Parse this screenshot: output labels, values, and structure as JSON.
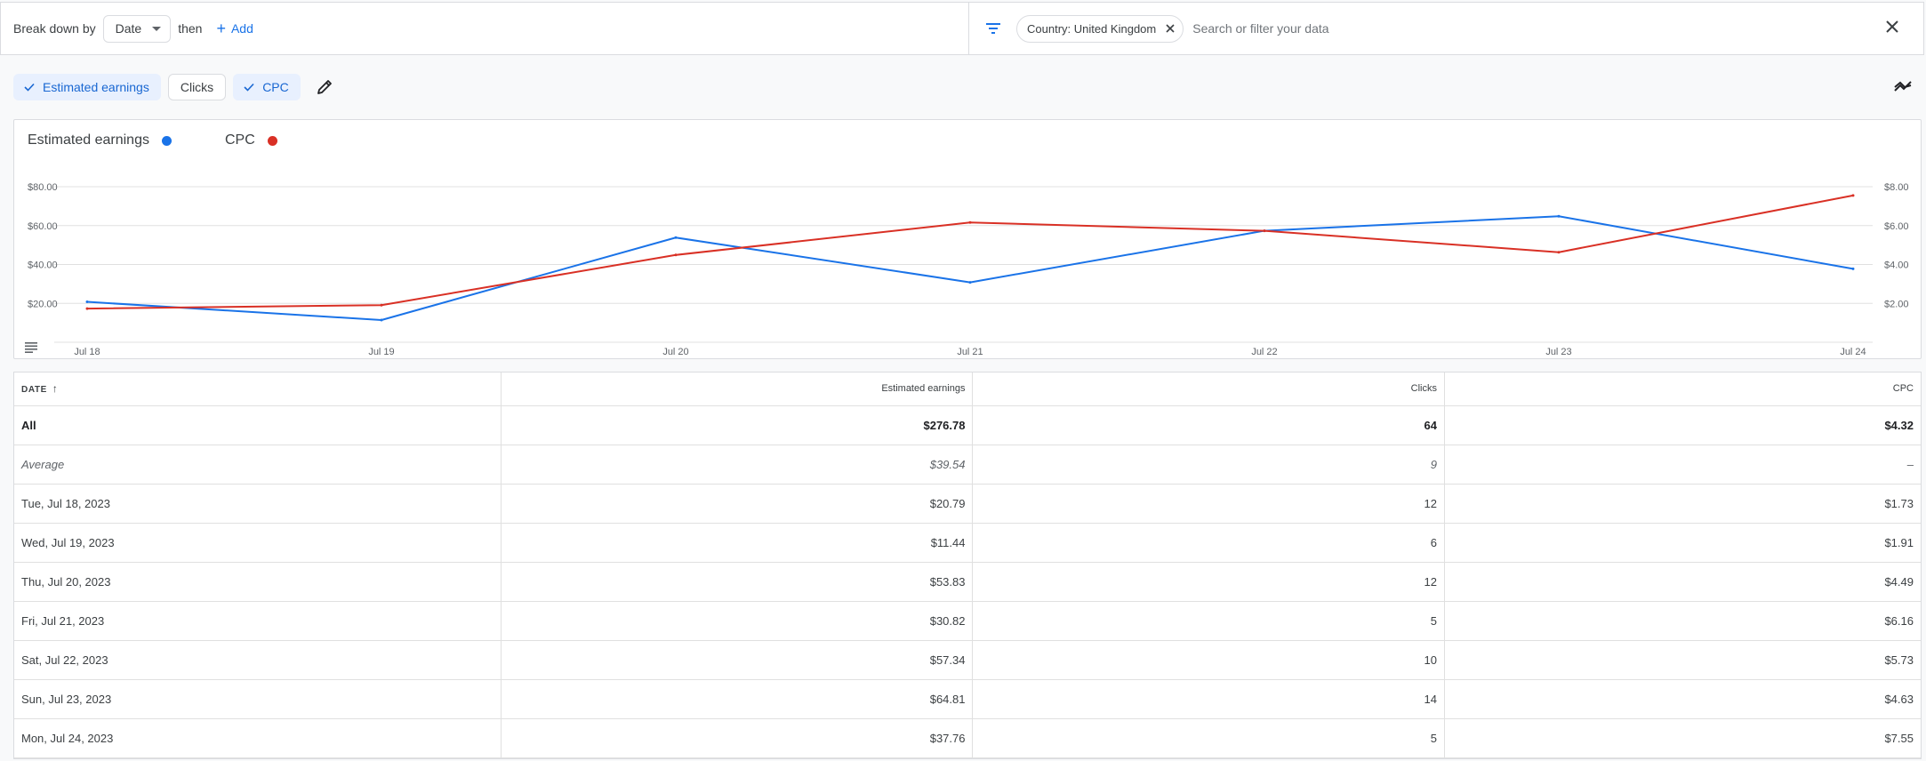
{
  "toolbar": {
    "breakdown_label": "Break down by",
    "breakdown_value": "Date",
    "then_label": "then",
    "add_label": "Add",
    "filter_chip": "Country: United Kingdom",
    "search_placeholder": "Search or filter your data",
    "icons": [
      "filter-icon",
      "close-icon",
      "plus-icon",
      "chevron-down-icon"
    ]
  },
  "metrics": {
    "chips": [
      {
        "label": "Estimated earnings",
        "selected": true
      },
      {
        "label": "Clicks",
        "selected": false
      },
      {
        "label": "CPC",
        "selected": true
      }
    ],
    "icons": [
      "edit-pencil-icon",
      "trend-icon"
    ]
  },
  "colors": {
    "accent": "#1a73e8",
    "earnings_line": "#1a73e8",
    "cpc_line": "#d93025",
    "chip_selected_bg": "#e8f0fe"
  },
  "chart_data": {
    "type": "line",
    "categories": [
      "Jul 18",
      "Jul 19",
      "Jul 20",
      "Jul 21",
      "Jul 22",
      "Jul 23",
      "Jul 24"
    ],
    "series": [
      {
        "name": "Estimated earnings",
        "axis": "left",
        "color": "#1a73e8",
        "values": [
          20.79,
          11.44,
          53.83,
          30.82,
          57.34,
          64.81,
          37.76
        ]
      },
      {
        "name": "CPC",
        "axis": "right",
        "color": "#d93025",
        "values": [
          1.73,
          1.91,
          4.49,
          6.16,
          5.73,
          4.63,
          7.55
        ]
      }
    ],
    "left_axis": {
      "ticks": [
        "$20.00",
        "$40.00",
        "$60.00",
        "$80.00"
      ],
      "ylim": [
        0,
        80
      ]
    },
    "right_axis": {
      "ticks": [
        "$2.00",
        "$4.00",
        "$6.00",
        "$8.00"
      ],
      "ylim": [
        0,
        8
      ]
    },
    "grid": true,
    "legend_position": "top-left"
  },
  "table": {
    "headers": [
      "DATE",
      "Estimated earnings",
      "Clicks",
      "CPC"
    ],
    "sort_column": "DATE",
    "sort_direction": "ascending",
    "summary": [
      {
        "label": "All",
        "earnings": "$276.78",
        "clicks": "64",
        "cpc": "$4.32"
      },
      {
        "label": "Average",
        "earnings": "$39.54",
        "clicks": "9",
        "cpc": "–"
      }
    ],
    "rows": [
      {
        "date": "Tue, Jul 18, 2023",
        "earnings": "$20.79",
        "clicks": "12",
        "cpc": "$1.73"
      },
      {
        "date": "Wed, Jul 19, 2023",
        "earnings": "$11.44",
        "clicks": "6",
        "cpc": "$1.91"
      },
      {
        "date": "Thu, Jul 20, 2023",
        "earnings": "$53.83",
        "clicks": "12",
        "cpc": "$4.49"
      },
      {
        "date": "Fri, Jul 21, 2023",
        "earnings": "$30.82",
        "clicks": "5",
        "cpc": "$6.16"
      },
      {
        "date": "Sat, Jul 22, 2023",
        "earnings": "$57.34",
        "clicks": "10",
        "cpc": "$5.73"
      },
      {
        "date": "Sun, Jul 23, 2023",
        "earnings": "$64.81",
        "clicks": "14",
        "cpc": "$4.63"
      },
      {
        "date": "Mon, Jul 24, 2023",
        "earnings": "$37.76",
        "clicks": "5",
        "cpc": "$7.55"
      }
    ]
  }
}
